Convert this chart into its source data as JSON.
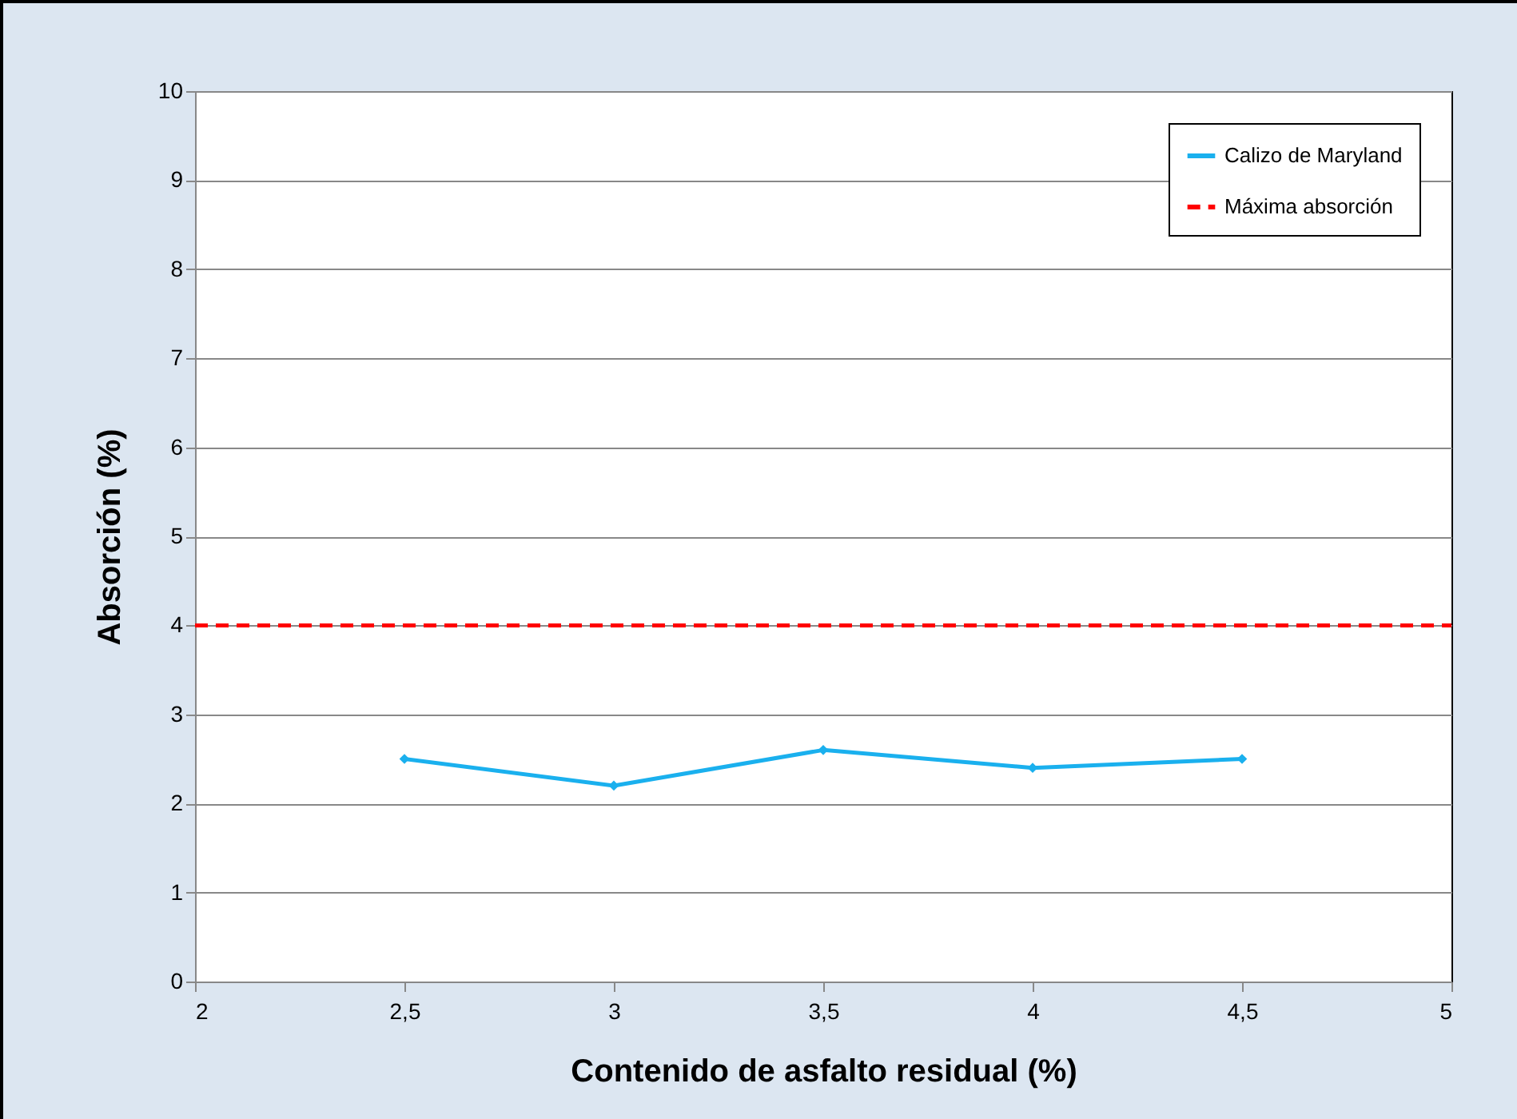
{
  "chart_data": {
    "type": "line",
    "xlabel": "Contenido de asfalto residual (%)",
    "ylabel": "Absorción (%)",
    "x": [
      2.5,
      3,
      3.5,
      4,
      4.5
    ],
    "series": [
      {
        "name": "Calizo de Maryland",
        "color": "#1ab0ee",
        "values": [
          2.5,
          2.2,
          2.6,
          2.4,
          2.5
        ],
        "marker": "diamond",
        "line_style": "solid"
      },
      {
        "name": "Máxima absorción",
        "color": "#ff0000",
        "x": [
          2,
          5
        ],
        "values": [
          4,
          4
        ],
        "marker": "none",
        "line_style": "dashed"
      }
    ],
    "xlim": [
      2,
      5
    ],
    "xticks": [
      2,
      {
        "value": 2.5,
        "label": "2,5"
      },
      3,
      {
        "value": 3.5,
        "label": "3,5"
      },
      4,
      {
        "value": 4.5,
        "label": "4,5"
      },
      5
    ],
    "ylim": [
      0,
      10
    ],
    "yticks": [
      0,
      1,
      2,
      3,
      4,
      5,
      6,
      7,
      8,
      9,
      10
    ],
    "grid": "y",
    "legend": "top right"
  }
}
